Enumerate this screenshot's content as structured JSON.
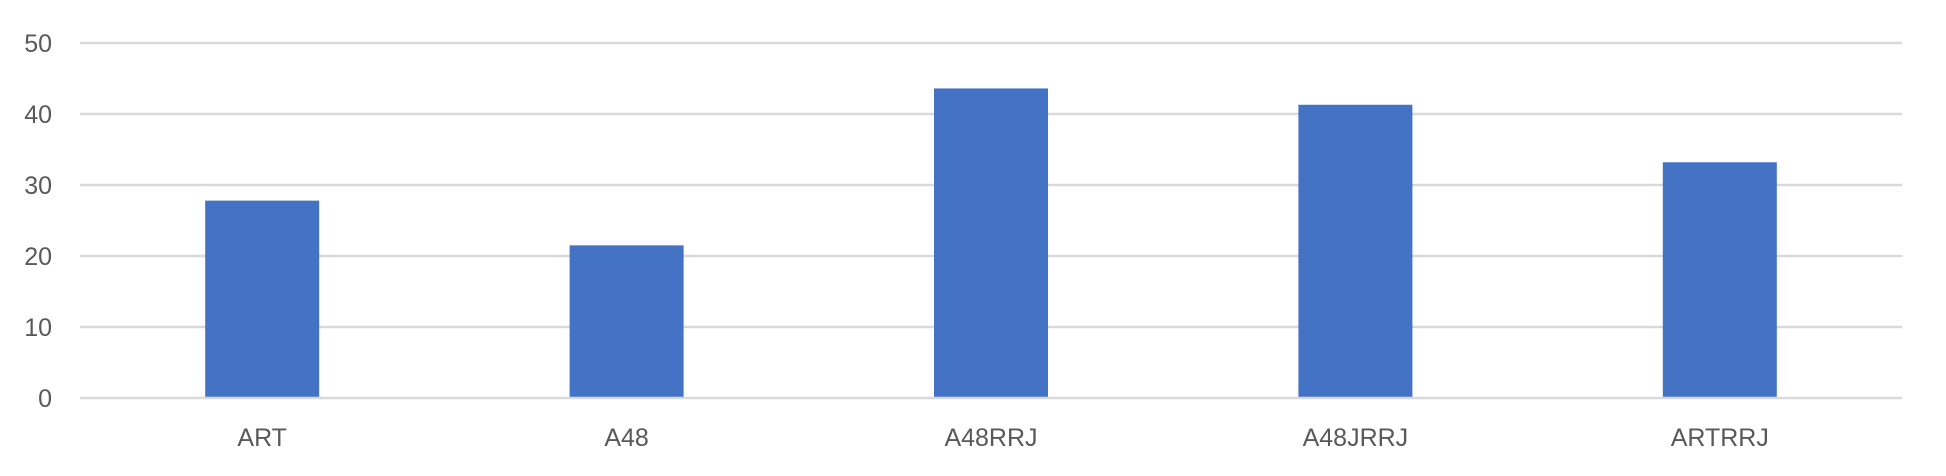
{
  "chart_data": {
    "type": "bar",
    "title": "",
    "xlabel": "",
    "ylabel": "",
    "categories": [
      "ART",
      "A48",
      "A48RRJ",
      "A48JRRJ",
      "ARTRRJ"
    ],
    "values": [
      27.8,
      21.5,
      43.6,
      41.3,
      33.2
    ],
    "ylim": [
      0,
      50
    ],
    "yticks": [
      "0",
      "10",
      "20",
      "30",
      "40",
      "50"
    ],
    "grid": true,
    "legend": "none",
    "bar_color": "#4472c4"
  }
}
